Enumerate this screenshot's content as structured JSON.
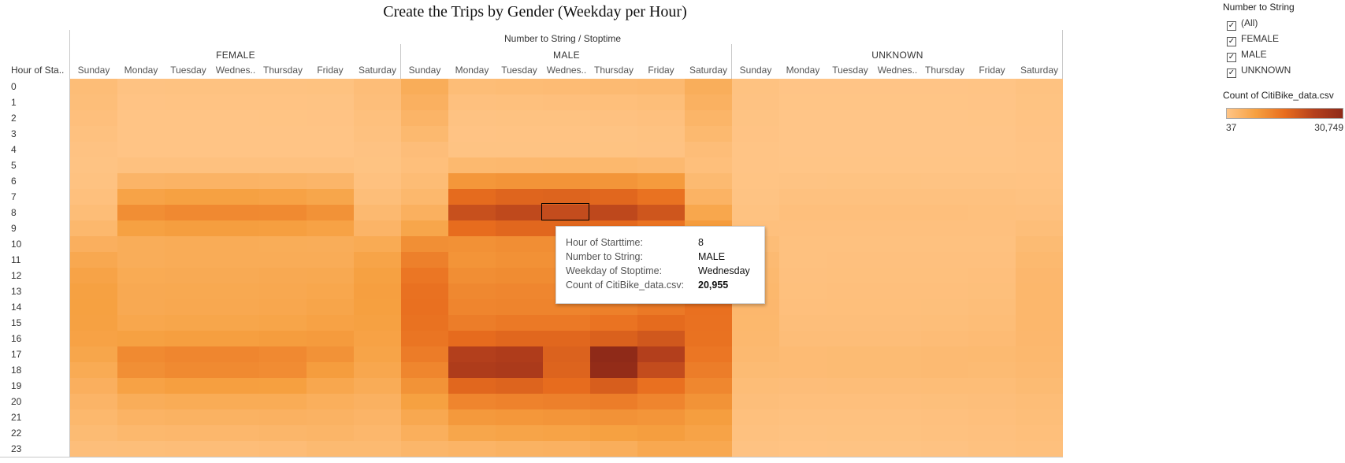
{
  "title": "Create the Trips by Gender (Weekday per Hour)",
  "column_header": "Number to String / Stoptime",
  "row_header": "Hour of Sta..",
  "groups": [
    "FEMALE",
    "MALE",
    "UNKNOWN"
  ],
  "days": [
    "Sunday",
    "Monday",
    "Tuesday",
    "Wednes..",
    "Thursday",
    "Friday",
    "Saturday"
  ],
  "hours": [
    "0",
    "1",
    "2",
    "3",
    "4",
    "5",
    "6",
    "7",
    "8",
    "9",
    "10",
    "11",
    "12",
    "13",
    "14",
    "15",
    "16",
    "17",
    "18",
    "19",
    "20",
    "21",
    "22",
    "23"
  ],
  "tooltip": {
    "rows": [
      {
        "key": "Hour of Starttime:",
        "value": "8",
        "bold": false
      },
      {
        "key": "Number to String:",
        "value": "MALE",
        "bold": false
      },
      {
        "key": "Weekday of Stoptime:",
        "value": "Wednesday",
        "bold": false
      },
      {
        "key": "Count of CitiBike_data.csv:",
        "value": "20,955",
        "bold": true
      }
    ]
  },
  "filter": {
    "title": "Number to String",
    "options": [
      {
        "label": "(All)",
        "checked": true
      },
      {
        "label": "FEMALE",
        "checked": true
      },
      {
        "label": "MALE",
        "checked": true
      },
      {
        "label": "UNKNOWN",
        "checked": true
      }
    ]
  },
  "color_legend": {
    "title": "Count of CitiBike_data.csv",
    "min_label": "37",
    "max_label": "30,749",
    "colors": [
      "#ffc587",
      "#f6a040",
      "#e86d1e",
      "#b5401c",
      "#8f2a18"
    ]
  },
  "chart_data": {
    "type": "heatmap",
    "x_groups": [
      "FEMALE",
      "MALE",
      "UNKNOWN"
    ],
    "x_categories": [
      "Sunday",
      "Monday",
      "Tuesday",
      "Wednesday",
      "Thursday",
      "Friday",
      "Saturday"
    ],
    "y_categories": [
      "0",
      "1",
      "2",
      "3",
      "4",
      "5",
      "6",
      "7",
      "8",
      "9",
      "10",
      "11",
      "12",
      "13",
      "14",
      "15",
      "16",
      "17",
      "18",
      "19",
      "20",
      "21",
      "22",
      "23"
    ],
    "value_range": [
      37,
      30749
    ],
    "highlight": {
      "group": "MALE",
      "day": "Wednesday",
      "hour": "8",
      "value": 20955
    },
    "values": {
      "FEMALE": [
        [
          1800,
          600,
          650,
          650,
          700,
          750,
          1700
        ],
        [
          1500,
          400,
          420,
          420,
          450,
          500,
          1400
        ],
        [
          1200,
          300,
          300,
          300,
          320,
          350,
          1100
        ],
        [
          900,
          220,
          220,
          220,
          230,
          250,
          850
        ],
        [
          600,
          250,
          250,
          250,
          260,
          280,
          600
        ],
        [
          500,
          900,
          950,
          950,
          950,
          900,
          550
        ],
        [
          700,
          3500,
          3700,
          3700,
          3600,
          3300,
          900
        ],
        [
          1100,
          7000,
          7500,
          7500,
          7200,
          6500,
          1500
        ],
        [
          1800,
          10500,
          11200,
          11200,
          11000,
          9800,
          2500
        ],
        [
          2800,
          7500,
          8000,
          8000,
          7800,
          7200,
          3500
        ],
        [
          4500,
          5000,
          5200,
          5200,
          5100,
          5000,
          5500
        ],
        [
          6000,
          5000,
          5200,
          5200,
          5200,
          5200,
          6800
        ],
        [
          7000,
          5500,
          5600,
          5600,
          5800,
          5900,
          7500
        ],
        [
          7500,
          5800,
          5900,
          5900,
          6000,
          6300,
          7800
        ],
        [
          7600,
          5800,
          6000,
          6000,
          6200,
          6600,
          7700
        ],
        [
          7500,
          6300,
          6500,
          6500,
          6700,
          7200,
          7500
        ],
        [
          7200,
          7500,
          7800,
          7800,
          8200,
          8400,
          7200
        ],
        [
          6500,
          11000,
          11600,
          11600,
          11200,
          9800,
          6800
        ],
        [
          5500,
          10200,
          11000,
          11000,
          10700,
          8200,
          6200
        ],
        [
          4500,
          7200,
          7800,
          7800,
          7700,
          6200,
          5200
        ],
        [
          3500,
          5000,
          5300,
          5300,
          5300,
          4700,
          4200
        ],
        [
          2800,
          3800,
          4000,
          4000,
          4100,
          3900,
          3500
        ],
        [
          2200,
          2800,
          3000,
          3000,
          3200,
          3400,
          3000
        ],
        [
          1400,
          1500,
          1700,
          1700,
          1900,
          2400,
          2400
        ]
      ],
      "MALE": [
        [
          5000,
          1800,
          2000,
          2100,
          2300,
          2500,
          4800
        ],
        [
          4300,
          1000,
          1100,
          1200,
          1300,
          1500,
          4200
        ],
        [
          3500,
          600,
          700,
          700,
          800,
          1000,
          3400
        ],
        [
          2600,
          400,
          450,
          450,
          500,
          650,
          2600
        ],
        [
          1600,
          500,
          500,
          500,
          550,
          600,
          1700
        ],
        [
          1300,
          2600,
          2700,
          2800,
          2800,
          2500,
          1300
        ],
        [
          2000,
          9000,
          9500,
          9500,
          9300,
          8500,
          2400
        ],
        [
          2800,
          15800,
          16800,
          17000,
          16500,
          14700,
          3800
        ],
        [
          4400,
          20300,
          21500,
          20955,
          21700,
          19300,
          6300
        ],
        [
          6500,
          15500,
          16500,
          16500,
          16000,
          14500,
          8300
        ],
        [
          10200,
          10000,
          10500,
          10500,
          10200,
          10000,
          11700
        ],
        [
          12500,
          9500,
          10000,
          10000,
          10000,
          10200,
          13300
        ],
        [
          14000,
          10500,
          10800,
          10800,
          11200,
          11200,
          14500
        ],
        [
          14800,
          11300,
          11600,
          11600,
          12000,
          12600,
          15200
        ],
        [
          15000,
          11800,
          12000,
          12000,
          12600,
          13600,
          15000
        ],
        [
          14700,
          13000,
          13600,
          13600,
          14500,
          15800,
          14800
        ],
        [
          14200,
          15700,
          16400,
          16400,
          17500,
          19000,
          14700
        ],
        [
          13200,
          23500,
          24300,
          17300,
          30749,
          23500,
          14000
        ],
        [
          11700,
          24500,
          25000,
          17000,
          30000,
          21000,
          13000
        ],
        [
          9700,
          16400,
          17000,
          15500,
          18000,
          15000,
          11500
        ],
        [
          7600,
          11800,
          12300,
          12500,
          13000,
          11800,
          9700
        ],
        [
          6000,
          8700,
          9000,
          9300,
          9800,
          9400,
          8000
        ],
        [
          4700,
          6500,
          6900,
          7100,
          7600,
          8000,
          7000
        ],
        [
          3200,
          3600,
          4000,
          4200,
          4800,
          6000,
          6000
        ]
      ],
      "UNKNOWN": [
        [
          700,
          150,
          160,
          160,
          170,
          200,
          650
        ],
        [
          600,
          100,
          110,
          110,
          120,
          150,
          550
        ],
        [
          480,
          70,
          75,
          75,
          80,
          100,
          450
        ],
        [
          380,
          50,
          50,
          50,
          55,
          70,
          360
        ],
        [
          260,
          37,
          40,
          40,
          45,
          55,
          280
        ],
        [
          240,
          120,
          130,
          130,
          130,
          130,
          260
        ],
        [
          320,
          500,
          530,
          530,
          520,
          480,
          420
        ],
        [
          470,
          900,
          950,
          950,
          930,
          860,
          650
        ],
        [
          700,
          1200,
          1250,
          1250,
          1250,
          1150,
          1000
        ],
        [
          1100,
          1000,
          1050,
          1050,
          1050,
          1000,
          1500
        ],
        [
          1800,
          900,
          950,
          950,
          950,
          950,
          2200
        ],
        [
          2300,
          950,
          1000,
          1000,
          1000,
          1050,
          2600
        ],
        [
          2600,
          1050,
          1100,
          1100,
          1150,
          1200,
          2900
        ],
        [
          2800,
          1150,
          1200,
          1200,
          1250,
          1350,
          3000
        ],
        [
          2900,
          1250,
          1300,
          1300,
          1350,
          1500,
          3000
        ],
        [
          2800,
          1400,
          1450,
          1450,
          1550,
          1750,
          2950
        ],
        [
          2700,
          1650,
          1700,
          1700,
          1850,
          2100,
          2900
        ],
        [
          2500,
          2100,
          2200,
          2200,
          2300,
          2400,
          2750
        ],
        [
          2200,
          2100,
          2200,
          2200,
          2300,
          2200,
          2500
        ],
        [
          1800,
          1600,
          1700,
          1700,
          1800,
          1800,
          2200
        ],
        [
          1400,
          1200,
          1250,
          1250,
          1350,
          1400,
          1800
        ],
        [
          1100,
          900,
          950,
          950,
          1050,
          1200,
          1500
        ],
        [
          850,
          700,
          750,
          750,
          850,
          1050,
          1300
        ],
        [
          600,
          450,
          500,
          500,
          600,
          850,
          1100
        ]
      ]
    }
  }
}
